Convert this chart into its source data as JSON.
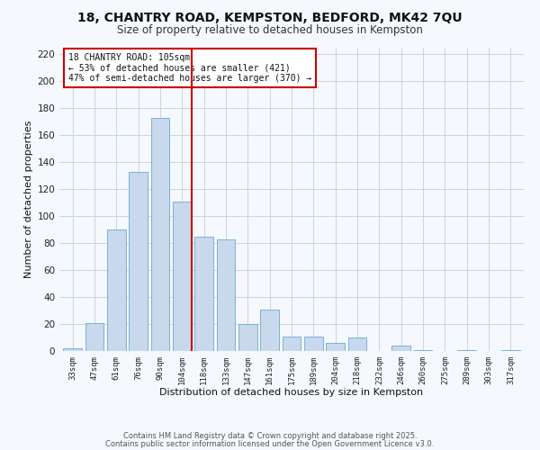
{
  "title": "18, CHANTRY ROAD, KEMPSTON, BEDFORD, MK42 7QU",
  "subtitle": "Size of property relative to detached houses in Kempston",
  "xlabel": "Distribution of detached houses by size in Kempston",
  "ylabel": "Number of detached properties",
  "bar_color": "#c8d8ed",
  "bar_edge_color": "#6aaad4",
  "grid_color": "#c0cfe0",
  "background_color": "#f5f8fc",
  "vline_color": "#cc0000",
  "annotation_text": "18 CHANTRY ROAD: 105sqm\n← 53% of detached houses are smaller (421)\n47% of semi-detached houses are larger (370) →",
  "annotation_box_color": "white",
  "annotation_box_edge_color": "#cc0000",
  "footer_line1": "Contains HM Land Registry data © Crown copyright and database right 2025.",
  "footer_line2": "Contains public sector information licensed under the Open Government Licence v3.0.",
  "categories": [
    "33sqm",
    "47sqm",
    "61sqm",
    "76sqm",
    "90sqm",
    "104sqm",
    "118sqm",
    "133sqm",
    "147sqm",
    "161sqm",
    "175sqm",
    "189sqm",
    "204sqm",
    "218sqm",
    "232sqm",
    "246sqm",
    "260sqm",
    "275sqm",
    "289sqm",
    "303sqm",
    "317sqm"
  ],
  "values": [
    2,
    21,
    90,
    133,
    173,
    111,
    85,
    83,
    20,
    31,
    11,
    11,
    6,
    10,
    0,
    4,
    1,
    0,
    1,
    0,
    1
  ],
  "vline_category": "104sqm",
  "ylim": [
    0,
    225
  ],
  "yticks": [
    0,
    20,
    40,
    60,
    80,
    100,
    120,
    140,
    160,
    180,
    200,
    220
  ]
}
